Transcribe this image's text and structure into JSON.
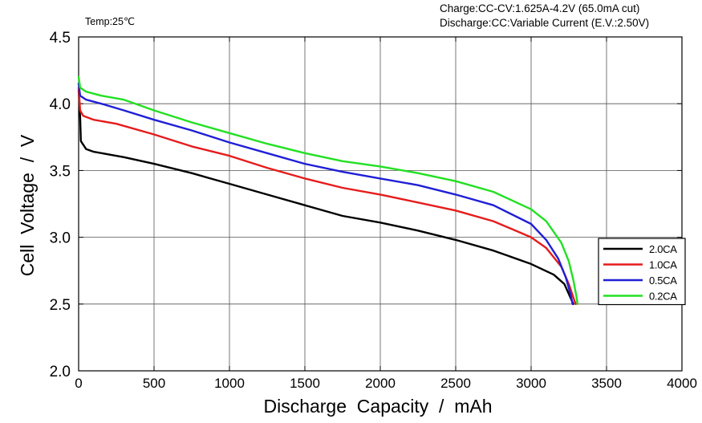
{
  "annotations": {
    "temp": "Temp:25℃",
    "charge": "Charge:CC-CV:1.625A-4.2V (65.0mA cut)",
    "discharge": "Discharge:CC:Variable Current (E.V.:2.50V)"
  },
  "chart_data": {
    "type": "line",
    "title": "",
    "xlabel": "Discharge  Capacity  /  mAh",
    "ylabel": "Cell  Voltage  /  V",
    "xlim": [
      0,
      4000
    ],
    "ylim": [
      2.0,
      4.5
    ],
    "x_ticks": [
      0,
      500,
      1000,
      1500,
      2000,
      2500,
      3000,
      3500,
      4000
    ],
    "y_ticks": [
      2.0,
      2.5,
      3.0,
      3.5,
      4.0,
      4.5
    ],
    "y_tick_labels": [
      "2.0",
      "2.5",
      "3.0",
      "3.5",
      "4.0",
      "4.5"
    ],
    "grid": true,
    "legend_position": "right",
    "series": [
      {
        "name": "2.0CA",
        "color": "#000000",
        "points": [
          [
            0,
            4.1
          ],
          [
            10,
            3.9
          ],
          [
            15,
            3.72
          ],
          [
            50,
            3.66
          ],
          [
            100,
            3.64
          ],
          [
            200,
            3.62
          ],
          [
            300,
            3.6
          ],
          [
            500,
            3.55
          ],
          [
            750,
            3.48
          ],
          [
            1000,
            3.4
          ],
          [
            1250,
            3.32
          ],
          [
            1500,
            3.24
          ],
          [
            1750,
            3.16
          ],
          [
            2000,
            3.11
          ],
          [
            2250,
            3.05
          ],
          [
            2500,
            2.98
          ],
          [
            2750,
            2.9
          ],
          [
            3000,
            2.8
          ],
          [
            3150,
            2.72
          ],
          [
            3220,
            2.65
          ],
          [
            3260,
            2.55
          ],
          [
            3280,
            2.5
          ]
        ]
      },
      {
        "name": "1.0CA",
        "color": "#e51c1c",
        "points": [
          [
            0,
            4.12
          ],
          [
            10,
            3.95
          ],
          [
            30,
            3.91
          ],
          [
            100,
            3.88
          ],
          [
            250,
            3.85
          ],
          [
            500,
            3.77
          ],
          [
            750,
            3.68
          ],
          [
            1000,
            3.61
          ],
          [
            1250,
            3.52
          ],
          [
            1500,
            3.44
          ],
          [
            1750,
            3.37
          ],
          [
            2000,
            3.32
          ],
          [
            2250,
            3.26
          ],
          [
            2500,
            3.2
          ],
          [
            2750,
            3.12
          ],
          [
            3000,
            3.0
          ],
          [
            3100,
            2.92
          ],
          [
            3200,
            2.78
          ],
          [
            3250,
            2.65
          ],
          [
            3280,
            2.55
          ],
          [
            3295,
            2.5
          ]
        ]
      },
      {
        "name": "0.5CA",
        "color": "#1f1fd6",
        "points": [
          [
            0,
            4.15
          ],
          [
            10,
            4.06
          ],
          [
            50,
            4.03
          ],
          [
            150,
            4.0
          ],
          [
            300,
            3.95
          ],
          [
            500,
            3.88
          ],
          [
            750,
            3.8
          ],
          [
            1000,
            3.71
          ],
          [
            1250,
            3.63
          ],
          [
            1500,
            3.55
          ],
          [
            1750,
            3.49
          ],
          [
            2000,
            3.44
          ],
          [
            2250,
            3.39
          ],
          [
            2500,
            3.32
          ],
          [
            2750,
            3.24
          ],
          [
            3000,
            3.1
          ],
          [
            3100,
            2.98
          ],
          [
            3180,
            2.84
          ],
          [
            3230,
            2.7
          ],
          [
            3260,
            2.58
          ],
          [
            3275,
            2.5
          ]
        ]
      },
      {
        "name": "0.2CA",
        "color": "#22e022",
        "points": [
          [
            0,
            4.2
          ],
          [
            10,
            4.12
          ],
          [
            50,
            4.09
          ],
          [
            150,
            4.06
          ],
          [
            300,
            4.03
          ],
          [
            500,
            3.95
          ],
          [
            750,
            3.86
          ],
          [
            1000,
            3.78
          ],
          [
            1250,
            3.7
          ],
          [
            1500,
            3.63
          ],
          [
            1750,
            3.57
          ],
          [
            2000,
            3.53
          ],
          [
            2250,
            3.48
          ],
          [
            2500,
            3.42
          ],
          [
            2750,
            3.34
          ],
          [
            3000,
            3.21
          ],
          [
            3100,
            3.12
          ],
          [
            3200,
            2.96
          ],
          [
            3250,
            2.82
          ],
          [
            3280,
            2.68
          ],
          [
            3300,
            2.56
          ],
          [
            3308,
            2.5
          ]
        ]
      }
    ]
  }
}
